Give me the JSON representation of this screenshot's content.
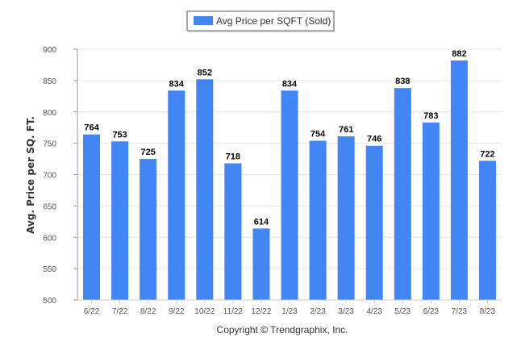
{
  "chart_data": {
    "type": "bar",
    "categories": [
      "6/22",
      "7/22",
      "8/22",
      "9/22",
      "10/22",
      "11/22",
      "12/22",
      "1/23",
      "2/23",
      "3/23",
      "4/23",
      "5/23",
      "6/23",
      "7/23",
      "8/23"
    ],
    "series": [
      {
        "name": "Avg Price per SQFT (Sold)",
        "values": [
          764,
          753,
          725,
          834,
          852,
          718,
          614,
          834,
          754,
          761,
          746,
          838,
          783,
          882,
          722
        ],
        "color": "#4285f4"
      }
    ],
    "ylabel": "Avg. Price per SQ. FT.",
    "xlabel": "",
    "ylim": [
      500,
      900
    ],
    "yticks": [
      500,
      550,
      600,
      650,
      700,
      750,
      800,
      850,
      900
    ],
    "grid": true,
    "legend_position": "top-center",
    "data_labels": true
  },
  "footer": "Copyright © Trendgraphix, Inc."
}
